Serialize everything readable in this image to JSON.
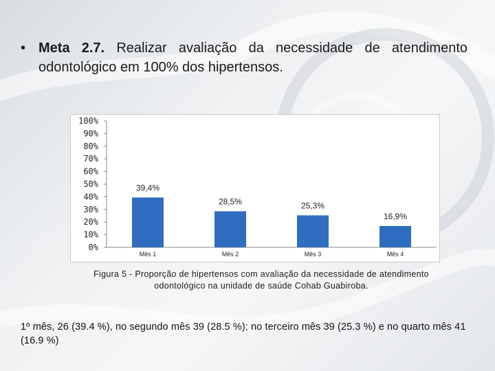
{
  "slide": {
    "bullet_glyph": "•",
    "heading_bold": "Meta 2.7.",
    "heading_text": "Realizar avaliação da necessidade de atendimento odontológico em 100% dos hipertensos.",
    "caption": "Figura 5 - Proporção de hipertensos com avaliação da necessidade de atendimento odontológico na unidade de saúde Cohab Guabiroba.",
    "summary": "1º mês, 26 (39.4 %), no segundo mês 39 (28.5 %); no terceiro mês 39 (25.3 %) e no quarto mês 41 (16.9 %)"
  },
  "chart_data": {
    "type": "bar",
    "title": "",
    "xlabel": "",
    "ylabel": "",
    "categories": [
      "Mês 1",
      "Mês 2",
      "Mês 3",
      "Mês 4"
    ],
    "values": [
      39.4,
      28.5,
      25.3,
      16.9
    ],
    "data_labels": [
      "39,4%",
      "28,5%",
      "25,3%",
      "16,9%"
    ],
    "ylim": [
      0,
      100
    ],
    "yticks": [
      "0%",
      "10%",
      "20%",
      "30%",
      "40%",
      "50%",
      "60%",
      "70%",
      "80%",
      "90%",
      "100%"
    ],
    "grid": false,
    "legend": "none",
    "bar_color": "#2f6dc0"
  }
}
